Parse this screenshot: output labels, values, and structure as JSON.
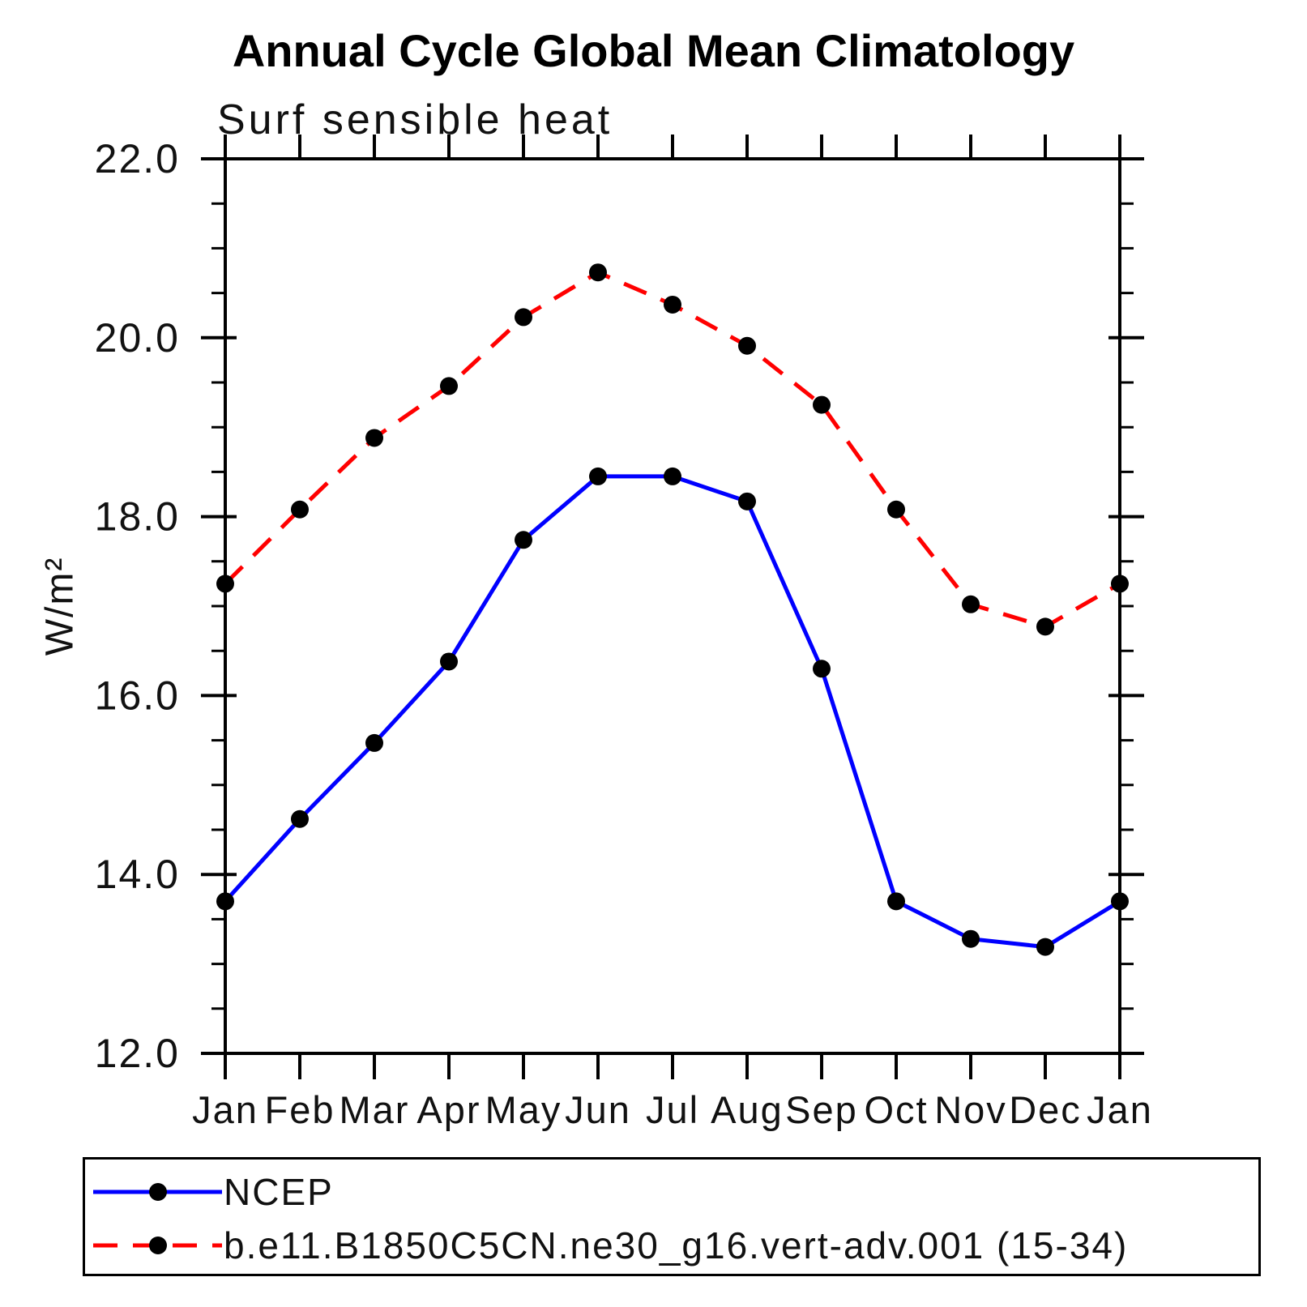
{
  "title": "Annual Cycle Global Mean Climatology",
  "subtitle": "Surf sensible heat",
  "colors": {
    "ncep_line": "#0000ff",
    "model_line": "#ff0000",
    "marker": "#000000",
    "axis": "#000000"
  },
  "legend": {
    "items": [
      {
        "label": "NCEP",
        "style": "solid",
        "color": "#0000ff"
      },
      {
        "label": "b.e11.B1850C5CN.ne30_g16.vert-adv.001 (15-34)",
        "style": "dashed",
        "color": "#ff0000"
      }
    ]
  },
  "chart_data": {
    "type": "line",
    "title": "Annual Cycle Global Mean Climatology",
    "subtitle": "Surf sensible heat",
    "xlabel": "",
    "ylabel": "W/m²",
    "categories": [
      "Jan",
      "Feb",
      "Mar",
      "Apr",
      "May",
      "Jun",
      "Jul",
      "Aug",
      "Sep",
      "Oct",
      "Nov",
      "Dec",
      "Jan"
    ],
    "ylim": [
      12.0,
      22.0
    ],
    "ytick_major": 2.0,
    "ytick_minor": 0.5,
    "ytick_labels": [
      "12.0",
      "14.0",
      "16.0",
      "18.0",
      "20.0",
      "22.0"
    ],
    "grid": "off",
    "legend_position": "bottom-box",
    "marker": "filled-circle",
    "series": [
      {
        "id": "ncep",
        "name": "NCEP",
        "color": "#0000ff",
        "style": "solid",
        "values": [
          13.7,
          14.62,
          15.47,
          16.38,
          17.74,
          18.45,
          18.45,
          18.17,
          16.3,
          13.7,
          13.28,
          13.19,
          13.7
        ]
      },
      {
        "id": "model",
        "name": "b.e11.B1850C5CN.ne30_g16.vert-adv.001 (15-34)",
        "color": "#ff0000",
        "style": "dashed",
        "values": [
          17.25,
          18.08,
          18.88,
          19.46,
          20.23,
          20.73,
          20.37,
          19.91,
          19.25,
          18.08,
          17.02,
          16.77,
          17.25
        ]
      }
    ]
  }
}
